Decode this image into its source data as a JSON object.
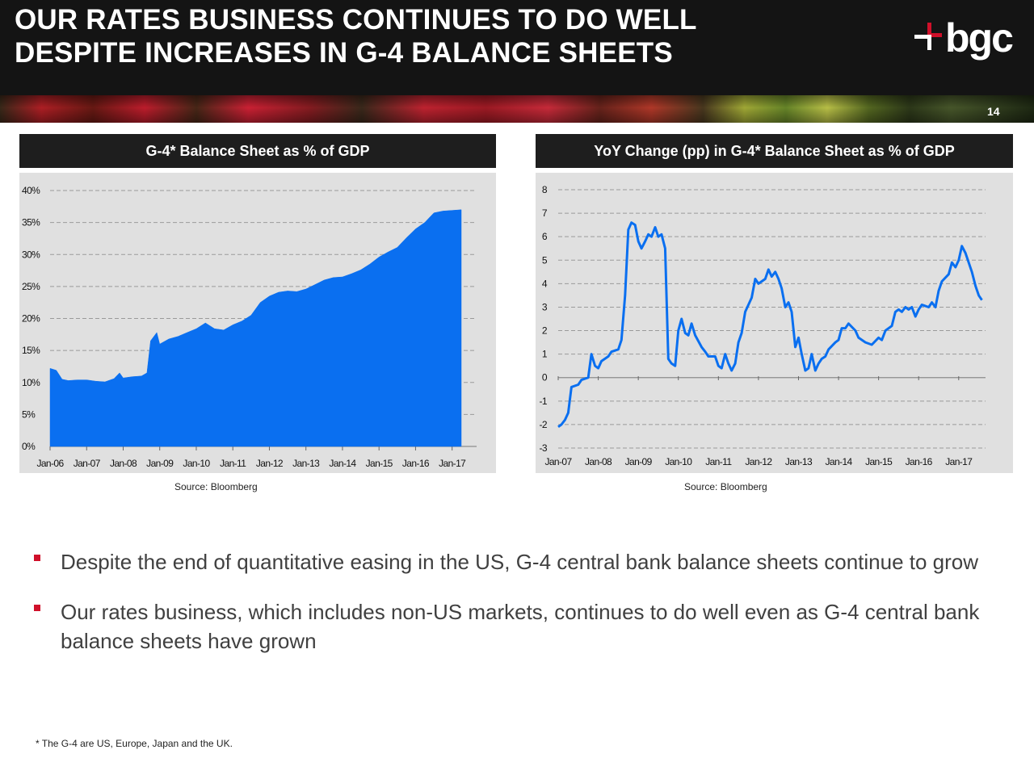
{
  "header": {
    "title_line1": "OUR RATES BUSINESS CONTINUES TO DO WELL",
    "title_line2": "DESPITE INCREASES IN G-4 BALANCE SHEETS",
    "logo_text": "bgc",
    "page_number": "14"
  },
  "colors": {
    "accent": "#d0102a",
    "series": "#0a6ff0",
    "header_bg": "#141414",
    "plot_bg": "#e0e0e0"
  },
  "charts": {
    "left": {
      "title": "G-4* Balance Sheet as % of GDP",
      "source": "Source: Bloomberg"
    },
    "right": {
      "title": "YoY Change (pp) in G-4* Balance Sheet as % of GDP",
      "source": "Source: Bloomberg"
    }
  },
  "bullets": [
    "Despite the end of quantitative easing in the US, G-4 central bank balance sheets continue to grow",
    "Our rates business, which includes non-US markets, continues to do well even as G-4 central bank balance sheets have grown"
  ],
  "footnote": "* The G-4 are US, Europe, Japan and the UK.",
  "chart_data": [
    {
      "type": "area",
      "title": "G-4* Balance Sheet as % of GDP",
      "unit": "%",
      "x_ticks": [
        "Jan-06",
        "Jan-07",
        "Jan-08",
        "Jan-09",
        "Jan-10",
        "Jan-11",
        "Jan-12",
        "Jan-13",
        "Jan-14",
        "Jan-15",
        "Jan-16",
        "Jan-17"
      ],
      "y_ticks": [
        "0%",
        "5%",
        "10%",
        "15%",
        "20%",
        "25%",
        "30%",
        "35%",
        "40%"
      ],
      "ylim": [
        0,
        40
      ],
      "x_start": 2006.0,
      "x_end": 2017.67,
      "grid": true,
      "series": [
        {
          "points": [
            [
              2006.0,
              12.2
            ],
            [
              2006.17,
              11.9
            ],
            [
              2006.33,
              10.5
            ],
            [
              2006.5,
              10.3
            ],
            [
              2006.75,
              10.4
            ],
            [
              2007.0,
              10.4
            ],
            [
              2007.25,
              10.2
            ],
            [
              2007.5,
              10.1
            ],
            [
              2007.75,
              10.6
            ],
            [
              2007.9,
              11.5
            ],
            [
              2008.0,
              10.7
            ],
            [
              2008.25,
              10.9
            ],
            [
              2008.5,
              11.0
            ],
            [
              2008.65,
              11.5
            ],
            [
              2008.75,
              16.5
            ],
            [
              2008.92,
              17.8
            ],
            [
              2009.0,
              16.0
            ],
            [
              2009.25,
              16.8
            ],
            [
              2009.5,
              17.2
            ],
            [
              2009.75,
              17.8
            ],
            [
              2010.0,
              18.4
            ],
            [
              2010.25,
              19.3
            ],
            [
              2010.5,
              18.4
            ],
            [
              2010.75,
              18.2
            ],
            [
              2011.0,
              19.0
            ],
            [
              2011.25,
              19.6
            ],
            [
              2011.5,
              20.5
            ],
            [
              2011.75,
              22.5
            ],
            [
              2012.0,
              23.5
            ],
            [
              2012.25,
              24.1
            ],
            [
              2012.5,
              24.3
            ],
            [
              2012.75,
              24.2
            ],
            [
              2013.0,
              24.6
            ],
            [
              2013.25,
              25.3
            ],
            [
              2013.5,
              26.0
            ],
            [
              2013.75,
              26.4
            ],
            [
              2014.0,
              26.5
            ],
            [
              2014.25,
              27.0
            ],
            [
              2014.5,
              27.6
            ],
            [
              2014.75,
              28.5
            ],
            [
              2015.0,
              29.6
            ],
            [
              2015.25,
              30.4
            ],
            [
              2015.5,
              31.1
            ],
            [
              2015.75,
              32.6
            ],
            [
              2016.0,
              34.0
            ],
            [
              2016.25,
              35.0
            ],
            [
              2016.5,
              36.5
            ],
            [
              2016.75,
              36.8
            ],
            [
              2017.0,
              36.9
            ],
            [
              2017.25,
              37.0
            ]
          ]
        }
      ]
    },
    {
      "type": "line",
      "title": "YoY Change (pp) in G-4* Balance Sheet as % of GDP",
      "x_ticks": [
        "Jan-07",
        "Jan-08",
        "Jan-09",
        "Jan-10",
        "Jan-11",
        "Jan-12",
        "Jan-13",
        "Jan-14",
        "Jan-15",
        "Jan-16",
        "Jan-17"
      ],
      "y_ticks": [
        "-3",
        "-2",
        "-1",
        "0",
        "1",
        "2",
        "3",
        "4",
        "5",
        "6",
        "7",
        "8"
      ],
      "ylim": [
        -3,
        8
      ],
      "x_start": 2007.0,
      "x_end": 2017.67,
      "grid": true,
      "series": [
        {
          "points": [
            [
              2007.0,
              -2.1
            ],
            [
              2007.08,
              -2.0
            ],
            [
              2007.17,
              -1.8
            ],
            [
              2007.25,
              -1.5
            ],
            [
              2007.33,
              -0.4
            ],
            [
              2007.5,
              -0.3
            ],
            [
              2007.58,
              -0.1
            ],
            [
              2007.75,
              0.0
            ],
            [
              2007.83,
              1.0
            ],
            [
              2007.92,
              0.5
            ],
            [
              2008.0,
              0.4
            ],
            [
              2008.08,
              0.7
            ],
            [
              2008.25,
              0.9
            ],
            [
              2008.33,
              1.1
            ],
            [
              2008.5,
              1.2
            ],
            [
              2008.58,
              1.6
            ],
            [
              2008.67,
              3.5
            ],
            [
              2008.75,
              6.3
            ],
            [
              2008.83,
              6.6
            ],
            [
              2008.92,
              6.5
            ],
            [
              2009.0,
              5.8
            ],
            [
              2009.08,
              5.5
            ],
            [
              2009.17,
              5.8
            ],
            [
              2009.25,
              6.1
            ],
            [
              2009.33,
              6.0
            ],
            [
              2009.42,
              6.4
            ],
            [
              2009.5,
              6.0
            ],
            [
              2009.58,
              6.1
            ],
            [
              2009.67,
              5.5
            ],
            [
              2009.75,
              0.8
            ],
            [
              2009.83,
              0.6
            ],
            [
              2009.92,
              0.5
            ],
            [
              2010.0,
              2.0
            ],
            [
              2010.08,
              2.5
            ],
            [
              2010.17,
              1.9
            ],
            [
              2010.25,
              1.8
            ],
            [
              2010.33,
              2.3
            ],
            [
              2010.42,
              1.8
            ],
            [
              2010.58,
              1.3
            ],
            [
              2010.67,
              1.1
            ],
            [
              2010.75,
              0.9
            ],
            [
              2010.92,
              0.9
            ],
            [
              2011.0,
              0.5
            ],
            [
              2011.08,
              0.4
            ],
            [
              2011.17,
              1.0
            ],
            [
              2011.25,
              0.6
            ],
            [
              2011.33,
              0.3
            ],
            [
              2011.42,
              0.6
            ],
            [
              2011.5,
              1.5
            ],
            [
              2011.58,
              1.9
            ],
            [
              2011.67,
              2.8
            ],
            [
              2011.83,
              3.4
            ],
            [
              2011.92,
              4.2
            ],
            [
              2012.0,
              4.0
            ],
            [
              2012.17,
              4.2
            ],
            [
              2012.25,
              4.6
            ],
            [
              2012.33,
              4.3
            ],
            [
              2012.42,
              4.5
            ],
            [
              2012.5,
              4.2
            ],
            [
              2012.58,
              3.8
            ],
            [
              2012.67,
              3.0
            ],
            [
              2012.75,
              3.2
            ],
            [
              2012.83,
              2.8
            ],
            [
              2012.92,
              1.3
            ],
            [
              2013.0,
              1.7
            ],
            [
              2013.08,
              1.0
            ],
            [
              2013.17,
              0.3
            ],
            [
              2013.25,
              0.4
            ],
            [
              2013.33,
              1.0
            ],
            [
              2013.42,
              0.3
            ],
            [
              2013.5,
              0.6
            ],
            [
              2013.58,
              0.8
            ],
            [
              2013.67,
              0.9
            ],
            [
              2013.75,
              1.2
            ],
            [
              2013.92,
              1.5
            ],
            [
              2014.0,
              1.6
            ],
            [
              2014.08,
              2.1
            ],
            [
              2014.17,
              2.1
            ],
            [
              2014.25,
              2.3
            ],
            [
              2014.42,
              2.0
            ],
            [
              2014.5,
              1.7
            ],
            [
              2014.67,
              1.5
            ],
            [
              2014.83,
              1.4
            ],
            [
              2015.0,
              1.7
            ],
            [
              2015.08,
              1.6
            ],
            [
              2015.17,
              2.0
            ],
            [
              2015.33,
              2.2
            ],
            [
              2015.42,
              2.8
            ],
            [
              2015.5,
              2.9
            ],
            [
              2015.58,
              2.8
            ],
            [
              2015.67,
              3.0
            ],
            [
              2015.75,
              2.9
            ],
            [
              2015.83,
              3.0
            ],
            [
              2015.92,
              2.6
            ],
            [
              2016.0,
              2.9
            ],
            [
              2016.08,
              3.1
            ],
            [
              2016.25,
              3.0
            ],
            [
              2016.33,
              3.2
            ],
            [
              2016.42,
              3.0
            ],
            [
              2016.5,
              3.7
            ],
            [
              2016.58,
              4.1
            ],
            [
              2016.75,
              4.4
            ],
            [
              2016.83,
              4.9
            ],
            [
              2016.92,
              4.7
            ],
            [
              2017.0,
              5.0
            ],
            [
              2017.08,
              5.6
            ],
            [
              2017.17,
              5.3
            ],
            [
              2017.33,
              4.5
            ],
            [
              2017.42,
              3.9
            ],
            [
              2017.5,
              3.5
            ],
            [
              2017.58,
              3.3
            ]
          ]
        }
      ]
    }
  ]
}
